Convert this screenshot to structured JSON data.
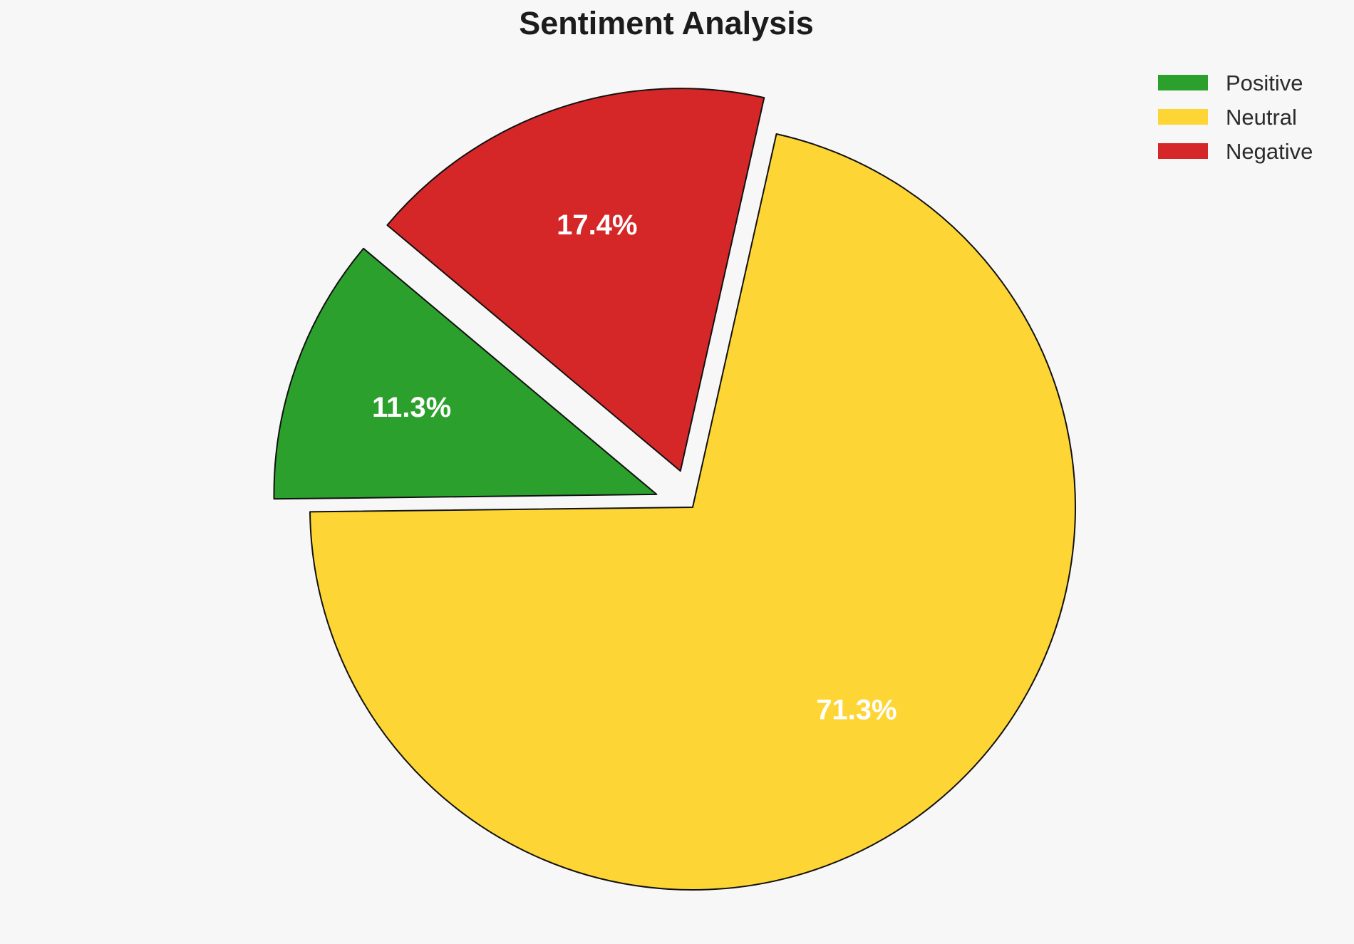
{
  "chart_data": {
    "type": "pie",
    "title": "Sentiment Analysis",
    "slices": [
      {
        "label": "Positive",
        "value": 11.3,
        "pct_label": "11.3%",
        "color": "#2ca02c",
        "explode": 0.1
      },
      {
        "label": "Neutral",
        "value": 71.3,
        "pct_label": "71.3%",
        "color": "#fdd535",
        "explode": 0.0
      },
      {
        "label": "Negative",
        "value": 17.4,
        "pct_label": "17.4%",
        "color": "#d62728",
        "explode": 0.1
      }
    ],
    "startangle": 140,
    "counterclock": true,
    "pctdistance": 0.68,
    "legend": {
      "position": "upper right",
      "entries": [
        "Positive",
        "Neutral",
        "Negative"
      ]
    },
    "background_color": "#f7f7f8",
    "wedge_edge_color": "#111111",
    "pct_text_color": "#ffffff",
    "title_color": "#1c1c1c",
    "legend_text_color": "#2b2b2b"
  }
}
